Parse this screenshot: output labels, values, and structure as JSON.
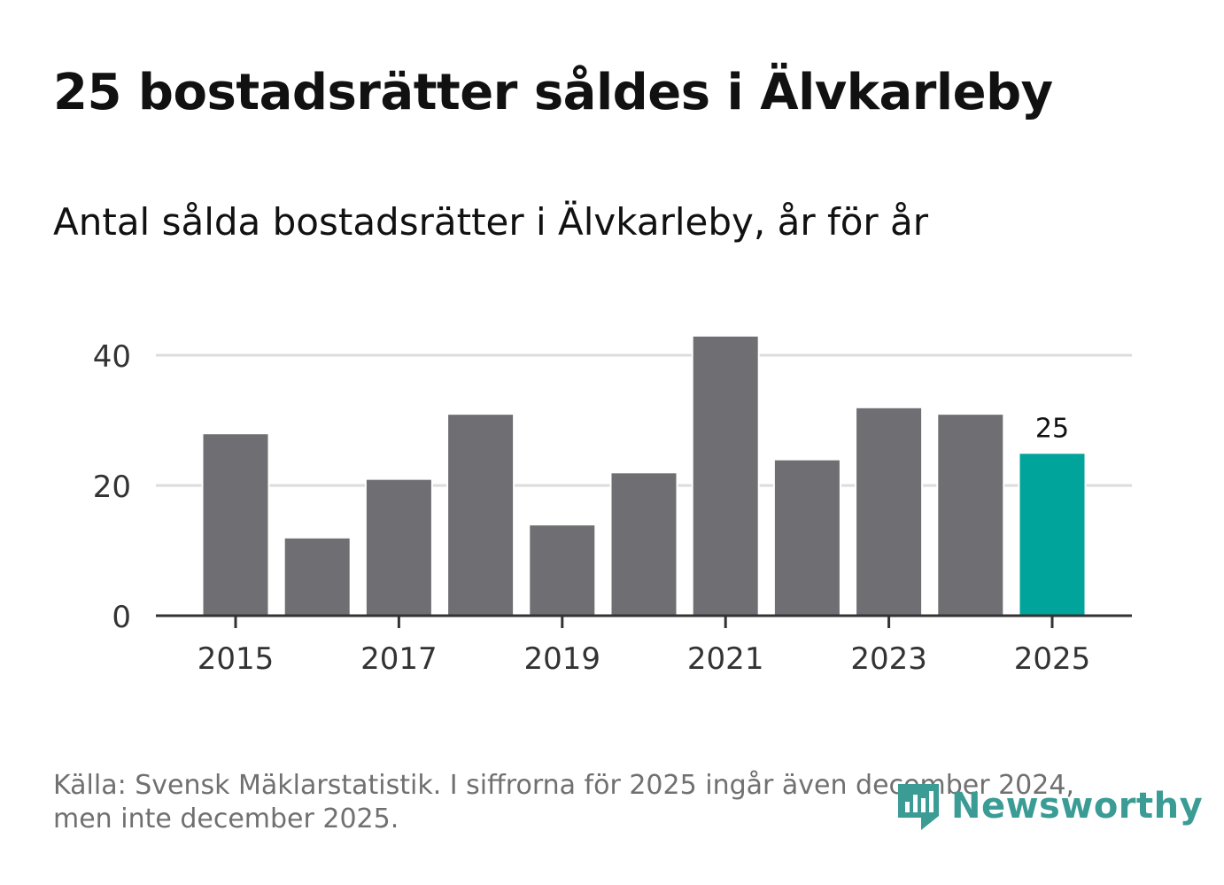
{
  "header": {
    "title": "25 bostadsrätter såldes i Älvkarleby",
    "subtitle": "Antal sålda bostadsrätter i Älvkarleby, år för år"
  },
  "footer": {
    "source_line1": "Källa: Svensk Mäklarstatistik. I siffrorna för 2025 ingår även december 2024,",
    "source_line2": "men inte december 2025."
  },
  "logo": {
    "text": "Newsworthy",
    "icon": "newsworthy-logo-icon"
  },
  "colors": {
    "bar": "#6f6e73",
    "highlight": "#00a49a",
    "grid": "#dcdcdc",
    "axis": "#333333",
    "logo": "#3a9c95"
  },
  "chart_data": {
    "type": "bar",
    "categories": [
      "2015",
      "2016",
      "2017",
      "2018",
      "2019",
      "2020",
      "2021",
      "2022",
      "2023",
      "2024",
      "2025"
    ],
    "values": [
      28,
      12,
      21,
      31,
      14,
      22,
      43,
      24,
      32,
      31,
      25
    ],
    "highlight_index": 10,
    "highlight_label": "25",
    "x_tick_labels": [
      "2015",
      "2017",
      "2019",
      "2021",
      "2023",
      "2025"
    ],
    "y_ticks": [
      0,
      20,
      40
    ],
    "ylim": [
      0,
      43
    ],
    "grid": true,
    "xlabel": "",
    "ylabel": ""
  }
}
